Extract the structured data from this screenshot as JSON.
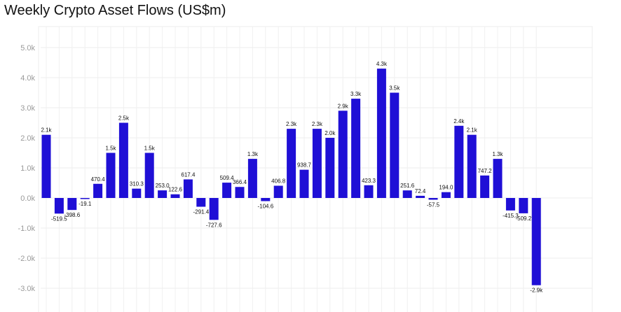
{
  "title": "Weekly Crypto Asset Flows (US$m)",
  "chart_data": {
    "type": "bar",
    "title": "Weekly Crypto Asset Flows (US$m)",
    "xlabel": "",
    "ylabel": "",
    "ylim": [
      -3500,
      5000
    ],
    "grid": true,
    "legend": "none",
    "bar_color": "#1f0fd6",
    "yticks": [
      5000,
      4000,
      3000,
      2000,
      1000,
      0,
      -1000,
      -2000,
      -3000
    ],
    "ytick_labels": [
      "5.0k",
      "4.0k",
      "3.0k",
      "2.0k",
      "1.0k",
      "0.0k",
      "-1.0k",
      "-2.0k",
      "-3.0k"
    ],
    "values": [
      2100,
      -519.5,
      -398.6,
      -19.1,
      470.4,
      1500,
      2500,
      310.3,
      1500,
      253.0,
      122.6,
      617.4,
      -291.4,
      -727.6,
      509.4,
      366.4,
      1300,
      -104.6,
      406.8,
      2300,
      938.7,
      2300,
      2000,
      2900,
      3300,
      423.3,
      4300,
      3500,
      251.6,
      72.4,
      -57.5,
      194.0,
      2400,
      2100,
      747.2,
      1300,
      -415.3,
      -509.2,
      -2900
    ],
    "labels": [
      "2.1k",
      "-519.5",
      "-398.6",
      "-19.1",
      "470.4",
      "1.5k",
      "2.5k",
      "310.3",
      "1.5k",
      "253.0",
      "122.6",
      "617.4",
      "-291.4",
      "-727.6",
      "509.4",
      "366.4",
      "1.3k",
      "-104.6",
      "406.8",
      "2.3k",
      "938.7",
      "2.3k",
      "2.0k",
      "2.9k",
      "3.3k",
      "423.3",
      "4.3k",
      "3.5k",
      "251.6",
      "72.4",
      "-57.5",
      "194.0",
      "2.4k",
      "2.1k",
      "747.2",
      "1.3k",
      "-415.3",
      "-509.2",
      "-2.9k"
    ]
  }
}
